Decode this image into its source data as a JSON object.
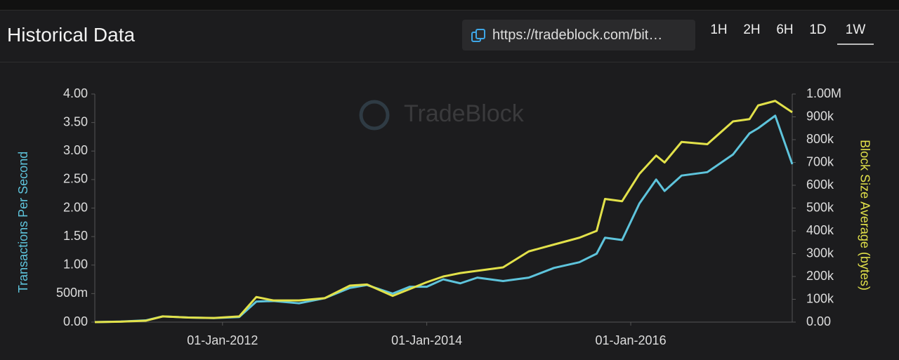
{
  "header": {
    "title": "Historical Data",
    "url": "https://tradeblock.com/bit…",
    "ranges": [
      "1H",
      "2H",
      "6H",
      "1D",
      "1W"
    ],
    "selected": "1W"
  },
  "chart_data": {
    "type": "line",
    "watermark": "TradeBlock",
    "x": [
      "2010-10-01",
      "2011-01-01",
      "2011-04-01",
      "2011-06-01",
      "2011-09-01",
      "2011-12-01",
      "2012-03-01",
      "2012-05-01",
      "2012-07-01",
      "2012-10-01",
      "2013-01-01",
      "2013-04-01",
      "2013-06-01",
      "2013-09-01",
      "2013-11-01",
      "2014-01-01",
      "2014-03-01",
      "2014-05-01",
      "2014-07-01",
      "2014-10-01",
      "2015-01-01",
      "2015-04-01",
      "2015-07-01",
      "2015-09-01",
      "2015-10-01",
      "2015-12-01",
      "2016-02-01",
      "2016-04-01",
      "2016-05-01",
      "2016-07-01",
      "2016-10-01",
      "2017-01-01",
      "2017-03-01",
      "2017-04-01",
      "2017-06-01",
      "2017-08-01"
    ],
    "xlim": [
      "2010-10-01",
      "2017-08-01"
    ],
    "xticks": [
      {
        "value": "2012-01-01",
        "label": "01-Jan-2012"
      },
      {
        "value": "2014-01-01",
        "label": "01-Jan-2014"
      },
      {
        "value": "2016-01-01",
        "label": "01-Jan-2016"
      }
    ],
    "y_label": "Transactions Per Second",
    "y2_label": "Block Size Average (bytes)",
    "ylim": [
      0,
      4
    ],
    "yticks": [
      {
        "value": 0,
        "label": "0.00"
      },
      {
        "value": 0.5,
        "label": "500m"
      },
      {
        "value": 1,
        "label": "1.00"
      },
      {
        "value": 1.5,
        "label": "1.50"
      },
      {
        "value": 2,
        "label": "2.00"
      },
      {
        "value": 2.5,
        "label": "2.50"
      },
      {
        "value": 3,
        "label": "3.00"
      },
      {
        "value": 3.5,
        "label": "3.50"
      },
      {
        "value": 4,
        "label": "4.00"
      }
    ],
    "y2lim": [
      0,
      1000000
    ],
    "y2ticks": [
      {
        "value": 0,
        "label": "0.00"
      },
      {
        "value": 100000,
        "label": "100k"
      },
      {
        "value": 200000,
        "label": "200k"
      },
      {
        "value": 300000,
        "label": "300k"
      },
      {
        "value": 400000,
        "label": "400k"
      },
      {
        "value": 500000,
        "label": "500k"
      },
      {
        "value": 600000,
        "label": "600k"
      },
      {
        "value": 700000,
        "label": "700k"
      },
      {
        "value": 800000,
        "label": "800k"
      },
      {
        "value": 900000,
        "label": "900k"
      },
      {
        "value": 1000000,
        "label": "1.00M"
      }
    ],
    "series": [
      {
        "color": "#5ec4dc",
        "axis": "y",
        "values": [
          0,
          0.01,
          0.03,
          0.1,
          0.08,
          0.07,
          0.09,
          0.36,
          0.37,
          0.33,
          0.42,
          0.6,
          0.65,
          0.5,
          0.62,
          0.62,
          0.75,
          0.68,
          0.78,
          0.72,
          0.78,
          0.95,
          1.05,
          1.2,
          1.48,
          1.44,
          2.08,
          2.5,
          2.3,
          2.57,
          2.63,
          2.94,
          3.31,
          3.4,
          3.62,
          2.77
        ]
      },
      {
        "color": "#e2e14a",
        "axis": "y2",
        "values": [
          0,
          2000,
          6000,
          25000,
          20000,
          18000,
          25000,
          110000,
          95000,
          95000,
          105000,
          160000,
          165000,
          115000,
          145000,
          175000,
          200000,
          215000,
          225000,
          240000,
          310000,
          340000,
          370000,
          400000,
          540000,
          530000,
          650000,
          730000,
          700000,
          790000,
          780000,
          880000,
          890000,
          950000,
          970000,
          920000
        ]
      }
    ]
  }
}
